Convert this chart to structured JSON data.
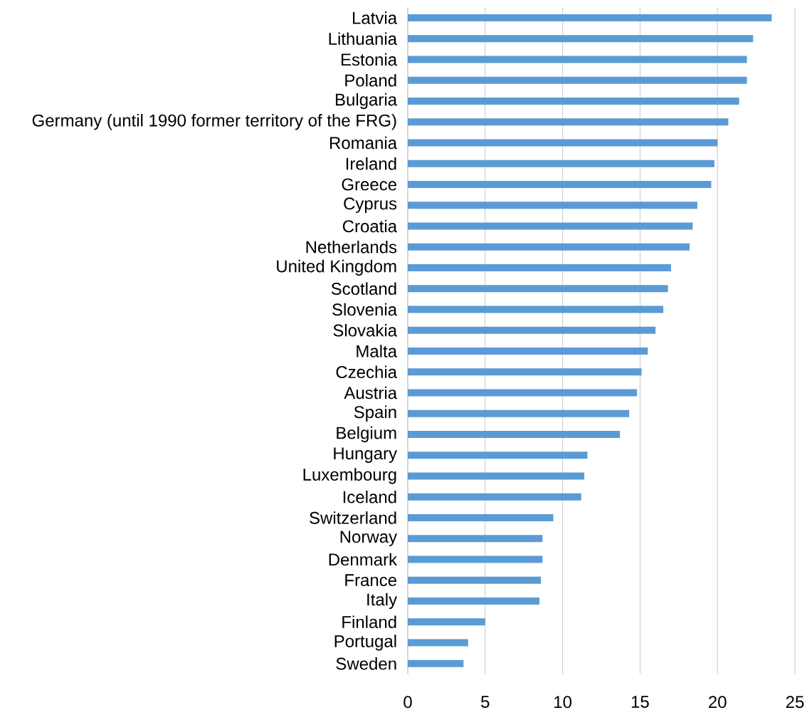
{
  "chart_data": {
    "type": "bar",
    "orientation": "horizontal",
    "color": "#5b9bd5",
    "grid": "x",
    "categories": [
      "Latvia",
      "Lithuania",
      "Estonia",
      "Poland",
      "Bulgaria",
      "Germany (until 1990 former territory of the FRG)",
      "Romania",
      "Ireland",
      "Greece",
      "Cyprus",
      "Croatia",
      "Netherlands",
      "United Kingdom",
      "Scotland",
      "Slovenia",
      "Slovakia",
      "Malta",
      "Czechia",
      "Austria",
      "Spain",
      "Belgium",
      "Hungary",
      "Luxembourg",
      "Iceland",
      "Switzerland",
      "Norway",
      "Denmark",
      "France",
      "Italy",
      "Finland",
      "Portugal",
      "Sweden"
    ],
    "values": [
      23.5,
      22.3,
      21.9,
      21.9,
      21.4,
      20.7,
      20.0,
      19.8,
      19.6,
      18.7,
      18.4,
      18.2,
      17.0,
      16.8,
      16.5,
      16.0,
      15.5,
      15.1,
      14.8,
      14.3,
      13.7,
      11.6,
      11.4,
      11.2,
      9.4,
      8.7,
      8.7,
      8.6,
      8.5,
      5.0,
      3.9,
      3.6
    ],
    "xlim": [
      0,
      25
    ],
    "xticks": [
      0,
      5,
      10,
      15,
      20,
      25
    ]
  }
}
